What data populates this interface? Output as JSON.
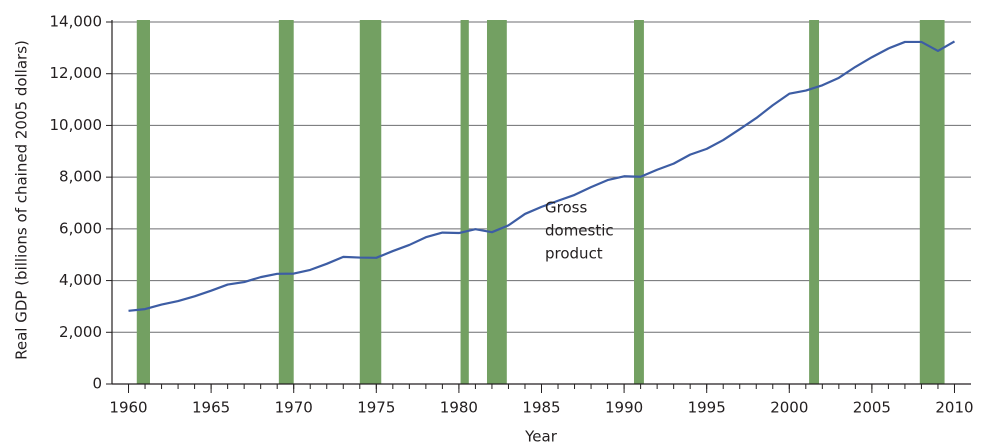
{
  "chart_data": {
    "type": "line",
    "ylabel": "Real GDP (billions of chained 2005 dollars)",
    "xlabel": "Year",
    "annotation": [
      "Gross",
      "domestic",
      "product"
    ],
    "x": [
      1960,
      1961,
      1962,
      1963,
      1964,
      1965,
      1966,
      1967,
      1968,
      1969,
      1970,
      1971,
      1972,
      1973,
      1974,
      1975,
      1976,
      1977,
      1978,
      1979,
      1980,
      1981,
      1982,
      1983,
      1984,
      1985,
      1986,
      1987,
      1988,
      1989,
      1990,
      1991,
      1992,
      1993,
      1994,
      1995,
      1996,
      1997,
      1998,
      1999,
      2000,
      2001,
      2002,
      2003,
      2004,
      2005,
      2006,
      2007,
      2008,
      2009,
      2010
    ],
    "series": [
      {
        "color": "#3d5da4",
        "values": [
          2830,
          2896,
          3072,
          3207,
          3392,
          3610,
          3845,
          3942,
          4133,
          4262,
          4270,
          4413,
          4648,
          4917,
          4890,
          4880,
          5141,
          5378,
          5677,
          5855,
          5839,
          5987,
          5871,
          6136,
          6577,
          6849,
          7087,
          7313,
          7614,
          7886,
          8034,
          8015,
          8287,
          8523,
          8871,
          9094,
          9434,
          9854,
          10284,
          10780,
          11226,
          11347,
          11553,
          11841,
          12264,
          12638,
          12976,
          13229,
          13229,
          12881,
          13248
        ]
      }
    ],
    "recessions": [
      [
        1960.5,
        1961.3
      ],
      [
        1969.1,
        1970.0
      ],
      [
        1974.0,
        1975.3
      ],
      [
        1980.1,
        1980.6
      ],
      [
        1981.7,
        1982.9
      ],
      [
        1990.6,
        1991.2
      ],
      [
        2001.2,
        2001.8
      ],
      [
        2007.9,
        2009.4
      ]
    ],
    "recession_color": "#73a062",
    "xlim": [
      1959,
      2011
    ],
    "xticks": [
      1960,
      1965,
      1970,
      1975,
      1980,
      1985,
      1990,
      1995,
      2000,
      2005,
      2010
    ],
    "xminorticks": [
      1960,
      1961,
      1962,
      1963,
      1964,
      1965,
      1966,
      1967,
      1968,
      1969,
      1970,
      1971,
      1972,
      1973,
      1974,
      1975,
      1976,
      1977,
      1978,
      1979,
      1980,
      1981,
      1982,
      1983,
      1984,
      1985,
      1986,
      1987,
      1988,
      1989,
      1990,
      1991,
      1992,
      1993,
      1994,
      1995,
      1996,
      1997,
      1998,
      1999,
      2000,
      2001,
      2002,
      2003,
      2004,
      2005,
      2006,
      2007,
      2008,
      2009,
      2010
    ],
    "ylim": [
      0,
      14000
    ],
    "yticks": [
      0,
      {
        "value": 2000,
        "label": "2,000"
      },
      {
        "value": 4000,
        "label": "4,000"
      },
      {
        "value": 6000,
        "label": "6,000"
      },
      {
        "value": 8000,
        "label": "8,000"
      },
      {
        "value": 10000,
        "label": "10,000"
      },
      {
        "value": 12000,
        "label": "12,000"
      },
      {
        "value": 14000,
        "label": "14,000"
      }
    ],
    "grid": true
  }
}
